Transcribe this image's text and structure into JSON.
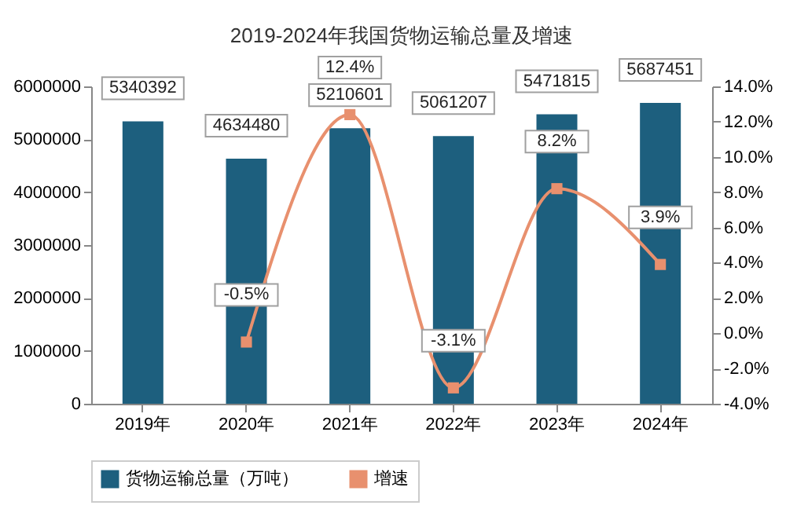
{
  "chart_data": {
    "type": "bar",
    "title": "2019-2024年我国货物运输总量及增速",
    "categories": [
      "2019年",
      "2020年",
      "2021年",
      "2022年",
      "2023年",
      "2024年"
    ],
    "series": [
      {
        "name": "货物运输总量（万吨）",
        "color": "#1d5f7e",
        "values": [
          5340392,
          4634480,
          5210601,
          5061207,
          5471815,
          5687451
        ],
        "data_labels": true
      },
      {
        "name": "增速",
        "type": "line",
        "axis": "y2",
        "color": "#e8906e",
        "marker": "square",
        "values": [
          null,
          -0.5,
          12.4,
          -3.1,
          8.2,
          3.9
        ],
        "value_labels": [
          null,
          "-0.5%",
          "12.4%",
          "-3.1%",
          "8.2%",
          "3.9%"
        ]
      }
    ],
    "ylim": [
      0,
      6000000
    ],
    "yticks": [
      0,
      1000000,
      2000000,
      3000000,
      4000000,
      5000000,
      6000000
    ],
    "y2lim": [
      -4,
      14
    ],
    "y2ticks": [
      {
        "value": -4,
        "label": "-4.0%"
      },
      {
        "value": -2,
        "label": "-2.0%"
      },
      {
        "value": 0,
        "label": "0.0%"
      },
      {
        "value": 2,
        "label": "2.0%"
      },
      {
        "value": 4,
        "label": "4.0%"
      },
      {
        "value": 6,
        "label": "6.0%"
      },
      {
        "value": 8,
        "label": "8.0%"
      },
      {
        "value": 10,
        "label": "10.0%"
      },
      {
        "value": 12,
        "label": "12.0%"
      },
      {
        "value": 14,
        "label": "14.0%"
      }
    ],
    "grid": false,
    "legend": "bottom"
  }
}
